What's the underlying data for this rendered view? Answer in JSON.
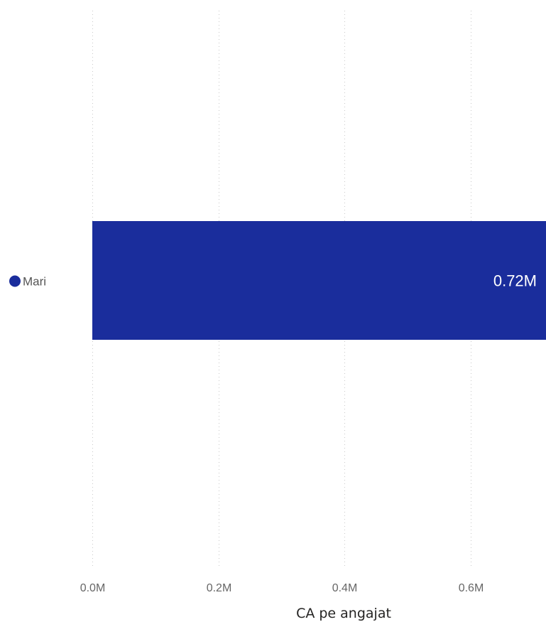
{
  "chart_data": {
    "type": "bar",
    "orientation": "horizontal",
    "categories": [
      "Mari"
    ],
    "values": [
      720000
    ],
    "data_labels": [
      "0.72M"
    ],
    "xlabel": "CA pe angajat",
    "ylabel": "",
    "xlim": [
      0,
      720000
    ],
    "x_ticks": [
      0,
      200000,
      400000,
      600000
    ],
    "x_tick_labels": [
      "0.0M",
      "0.2M",
      "0.4M",
      "0.6M"
    ],
    "grid": true,
    "legend": "none",
    "colors": {
      "bar": "#1a2d9c",
      "marker": "#1a2d9c"
    }
  }
}
